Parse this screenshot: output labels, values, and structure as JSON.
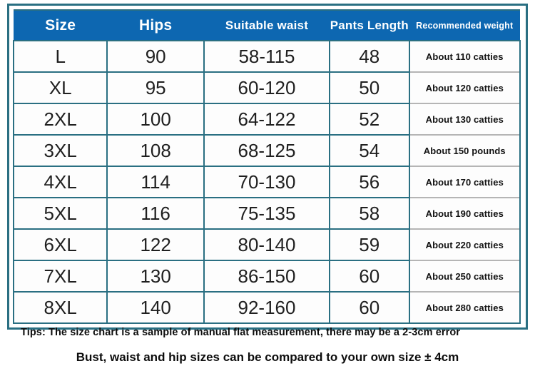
{
  "table": {
    "headers": [
      "Size",
      "Hips",
      "Suitable waist",
      "Pants Length",
      "Recommended weight"
    ],
    "rows": [
      {
        "size": "L",
        "hips": "90",
        "waist": "58-115",
        "length": "48",
        "weight": "About 110 catties"
      },
      {
        "size": "XL",
        "hips": "95",
        "waist": "60-120",
        "length": "50",
        "weight": "About 120 catties"
      },
      {
        "size": "2XL",
        "hips": "100",
        "waist": "64-122",
        "length": "52",
        "weight": "About 130 catties"
      },
      {
        "size": "3XL",
        "hips": "108",
        "waist": "68-125",
        "length": "54",
        "weight": "About 150 pounds"
      },
      {
        "size": "4XL",
        "hips": "114",
        "waist": "70-130",
        "length": "56",
        "weight": "About 170 catties"
      },
      {
        "size": "5XL",
        "hips": "116",
        "waist": "75-135",
        "length": "58",
        "weight": "About 190 catties"
      },
      {
        "size": "6XL",
        "hips": "122",
        "waist": "80-140",
        "length": "59",
        "weight": "About 220 catties"
      },
      {
        "size": "7XL",
        "hips": "130",
        "waist": "86-150",
        "length": "60",
        "weight": "About 250 catties"
      },
      {
        "size": "8XL",
        "hips": "140",
        "waist": "92-160",
        "length": "60",
        "weight": "About 280 catties"
      }
    ]
  },
  "tips": {
    "line1": "Tips: The size chart is a sample of manual flat measurement, there may be a 2-3cm error",
    "line2": "Bust, waist and hip sizes can be compared to your own size ± 4cm"
  },
  "colors": {
    "header_bg": "#0d67b1",
    "grid_border": "#2a6f82",
    "weight_divider": "#b5b5b5",
    "header_text": "#ffffff",
    "body_text": "#1f1f1f"
  }
}
